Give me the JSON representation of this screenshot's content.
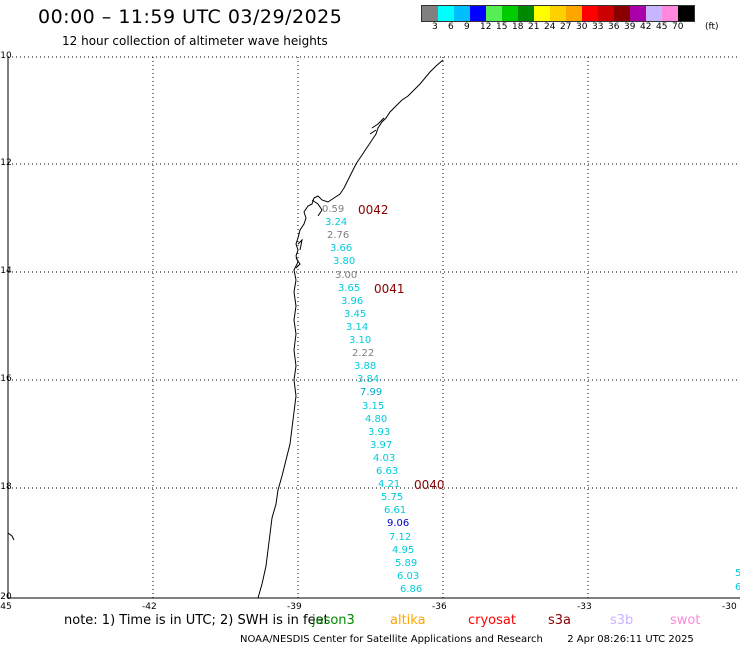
{
  "title": "00:00 – 11:59 UTC 03/29/2025",
  "subtitle": "12 hour collection of altimeter wave heights",
  "legend": {
    "unit": "(ft)",
    "colors": [
      "#808080",
      "#00ffff",
      "#00bfff",
      "#0000ff",
      "#55ee55",
      "#00cc00",
      "#008800",
      "#ffff00",
      "#ffd000",
      "#ffa500",
      "#ff0000",
      "#cc0000",
      "#880000",
      "#aa00aa",
      "#c8b4ff",
      "#ff88dd",
      "#000000"
    ],
    "labels": [
      "3",
      "6",
      "9",
      "12",
      "15",
      "18",
      "21",
      "24",
      "27",
      "30",
      "33",
      "36",
      "39",
      "42",
      "45",
      "70"
    ]
  },
  "axes": {
    "lat_labels": [
      "-10",
      "-12",
      "-14",
      "-16",
      "-18",
      "-20"
    ],
    "lon_labels": [
      "-45",
      "-42",
      "-39",
      "-36",
      "-33",
      "-30"
    ]
  },
  "track_values": [
    {
      "text": "0.59",
      "color": "#808080"
    },
    {
      "text": "3.24",
      "color": "#00ccdd"
    },
    {
      "text": "2.76",
      "color": "#808080"
    },
    {
      "text": "3.66",
      "color": "#00ccdd"
    },
    {
      "text": "3.80",
      "color": "#00ccdd"
    },
    {
      "text": "3.00",
      "color": "#808080"
    },
    {
      "text": "3.65",
      "color": "#00ccdd"
    },
    {
      "text": "3.96",
      "color": "#00ccdd"
    },
    {
      "text": "3.45",
      "color": "#00ccdd"
    },
    {
      "text": "3.14",
      "color": "#00ccdd"
    },
    {
      "text": "3.10",
      "color": "#00ccdd"
    },
    {
      "text": "2.22",
      "color": "#808080"
    },
    {
      "text": "3.88",
      "color": "#00ccdd"
    },
    {
      "text": "3.84",
      "color": "#00ccdd"
    },
    {
      "text": "7.99",
      "color": "#00aacc"
    },
    {
      "text": "3.15",
      "color": "#00ccdd"
    },
    {
      "text": "4.80",
      "color": "#00ccdd"
    },
    {
      "text": "3.93",
      "color": "#00ccdd"
    },
    {
      "text": "3.97",
      "color": "#00ccdd"
    },
    {
      "text": "4.03",
      "color": "#00ccdd"
    },
    {
      "text": "6.63",
      "color": "#00ccdd"
    },
    {
      "text": "4.21",
      "color": "#00ccdd"
    },
    {
      "text": "5.75",
      "color": "#00ccdd"
    },
    {
      "text": "6.61",
      "color": "#00ccdd"
    },
    {
      "text": "9.06",
      "color": "#0000cc"
    },
    {
      "text": "7.12",
      "color": "#00ccdd"
    },
    {
      "text": "4.95",
      "color": "#00ccdd"
    },
    {
      "text": "5.89",
      "color": "#00ccdd"
    },
    {
      "text": "6.03",
      "color": "#00ccdd"
    },
    {
      "text": "6.86",
      "color": "#00ccdd"
    }
  ],
  "edge_values": [
    "5",
    "6"
  ],
  "time_markers": [
    {
      "text": "0042",
      "color": "#880000"
    },
    {
      "text": "0041",
      "color": "#880000"
    },
    {
      "text": "0040",
      "color": "#880000"
    }
  ],
  "note": "note: 1) Time is in UTC; 2) SWH is in feet",
  "satellites": [
    {
      "name": "jason3",
      "color": "#008800"
    },
    {
      "name": "altika",
      "color": "#ffa500"
    },
    {
      "name": "cryosat",
      "color": "#ff0000"
    },
    {
      "name": "s3a",
      "color": "#880000"
    },
    {
      "name": "s3b",
      "color": "#c8b4ff"
    },
    {
      "name": "swot",
      "color": "#ff88dd"
    }
  ],
  "credit": "NOAA/NESDIS Center for Satellite Applications and Research",
  "timestamp": "2 Apr 08:26:11 UTC 2025"
}
